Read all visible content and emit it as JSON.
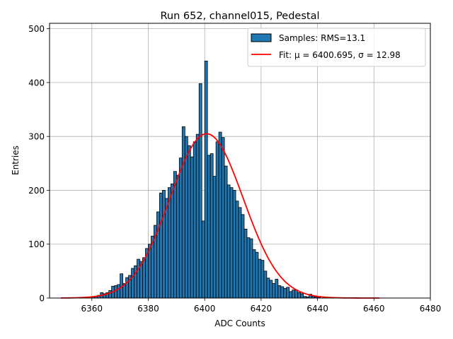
{
  "chart_data": {
    "type": "bar",
    "title": "Run 652, channel015, Pedestal",
    "xlabel": "ADC Counts",
    "ylabel": "Entries",
    "xlim": [
      6345,
      6480
    ],
    "ylim": [
      0,
      510
    ],
    "xticks": [
      6360,
      6380,
      6400,
      6420,
      6440,
      6460,
      6480
    ],
    "yticks": [
      0,
      100,
      200,
      300,
      400,
      500
    ],
    "grid": true,
    "legend_position": "top-right",
    "histogram": {
      "name": "Samples: RMS=13.1",
      "color": "#1f77b4",
      "edgecolor": "#000000",
      "bin_start": 6360,
      "bin_width": 1,
      "counts": [
        2,
        3,
        5,
        10,
        8,
        10,
        14,
        22,
        23,
        25,
        45,
        27,
        38,
        42,
        55,
        60,
        72,
        68,
        75,
        92,
        100,
        115,
        135,
        160,
        195,
        200,
        185,
        205,
        212,
        235,
        228,
        260,
        318,
        300,
        283,
        262,
        290,
        304,
        398,
        143,
        440,
        265,
        268,
        226,
        290,
        308,
        298,
        245,
        210,
        205,
        200,
        180,
        168,
        155,
        128,
        112,
        110,
        90,
        85,
        72,
        70,
        50,
        37,
        33,
        27,
        35,
        23,
        21,
        18,
        20,
        12,
        15,
        15,
        10,
        8,
        3,
        2,
        7,
        3,
        2,
        1
      ]
    },
    "fit": {
      "name": "Fit: μ = 6400.695, σ = 12.98",
      "label_prefix": "Fit: ",
      "mu_label": "μ = 6400.695",
      "sigma_label": "σ = 12.98",
      "mu": 6400.695,
      "sigma": 12.98,
      "amplitude": 305,
      "x_range": [
        6349,
        6462
      ],
      "color": "#ff0000"
    }
  }
}
